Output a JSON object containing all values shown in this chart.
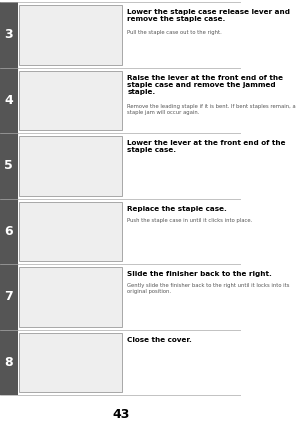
{
  "page_number": "43",
  "bg_color": "#ffffff",
  "steps": [
    {
      "number": "3",
      "title": "Lower the staple case release lever and\nremove the staple case.",
      "body": "Pull the staple case out to the right.",
      "body2": ""
    },
    {
      "number": "4",
      "title": "Raise the lever at the front end of the\nstaple case and remove the jammed\nstaple.",
      "body": "Remove the leading staple if it is bent. If bent staples remain, a\nstaple jam will occur again.",
      "body2": ""
    },
    {
      "number": "5",
      "title": "Lower the lever at the front end of the\nstaple case.",
      "body": "",
      "body2": ""
    },
    {
      "number": "6",
      "title": "Replace the staple case.",
      "body": "Push the staple case in until it clicks into place.",
      "body2": ""
    },
    {
      "number": "7",
      "title": "Slide the finisher back to the right.",
      "body": "Gently slide the finisher back to the right until it locks into its\noriginal position.",
      "body2": ""
    },
    {
      "number": "8",
      "title": "Close the cover.",
      "body": "",
      "body2": ""
    }
  ],
  "number_bg": "#555555",
  "number_color": "#ffffff",
  "title_color": "#000000",
  "body_color": "#555555",
  "border_color": "#aaaaaa",
  "image_bg": "#eeeeee",
  "divider_color": "#aaaaaa",
  "top_line_color": "#888888"
}
